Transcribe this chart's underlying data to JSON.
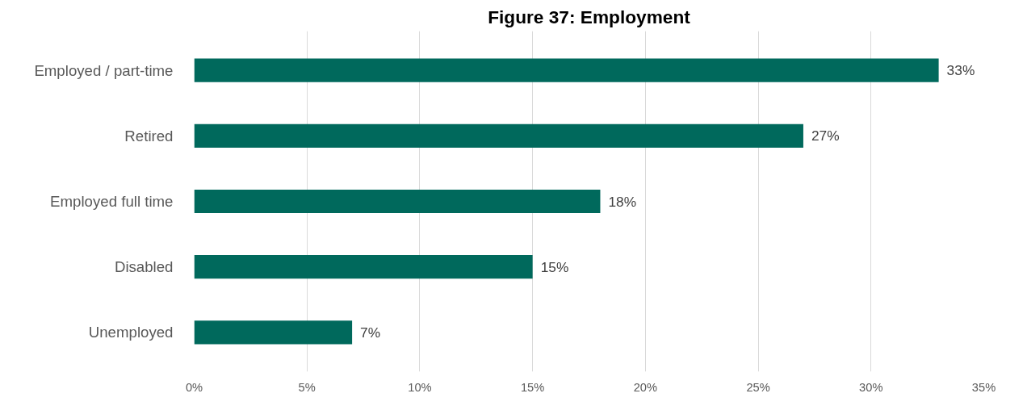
{
  "chart_data": {
    "type": "bar",
    "orientation": "horizontal",
    "title": "Figure 37: Employment",
    "categories": [
      "Employed / part-time",
      "Retired",
      "Employed full time",
      "Disabled",
      "Unemployed"
    ],
    "values": [
      33,
      27,
      18,
      15,
      7
    ],
    "value_labels": [
      "33%",
      "27%",
      "18%",
      "15%",
      "7%"
    ],
    "color": "#00695c",
    "xlim": [
      0,
      35
    ],
    "xticks": [
      {
        "value": 0,
        "label": "0%"
      },
      {
        "value": 5,
        "label": "5%"
      },
      {
        "value": 10,
        "label": "10%"
      },
      {
        "value": 15,
        "label": "15%"
      },
      {
        "value": 20,
        "label": "20%"
      },
      {
        "value": 25,
        "label": "25%"
      },
      {
        "value": 30,
        "label": "30%"
      },
      {
        "value": 35,
        "label": "35%"
      }
    ],
    "grid": "x"
  }
}
